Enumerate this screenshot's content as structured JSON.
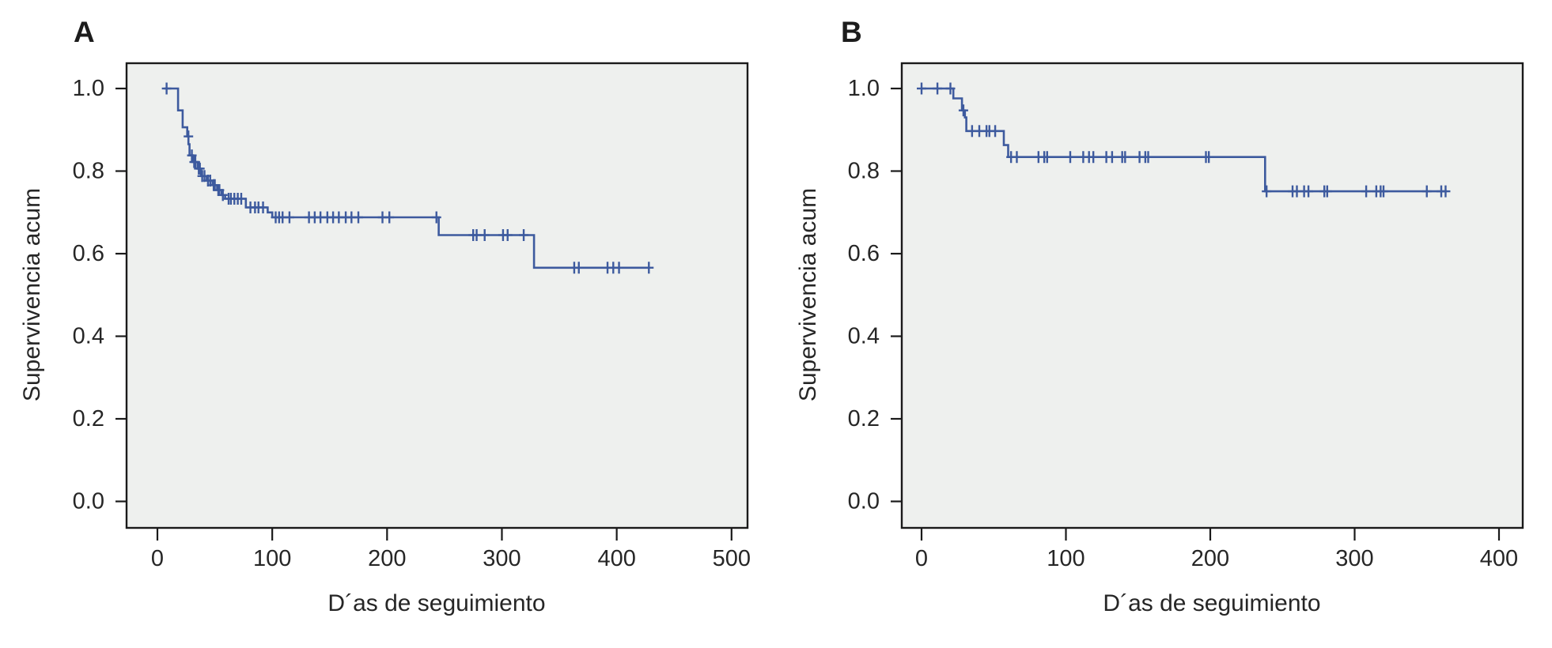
{
  "figure": {
    "background": "#ffffff",
    "plot_background": "#eef0ee",
    "axis_color": "#1a1a1a",
    "text_color": "#262626",
    "curve_color": "#3d5a9e"
  },
  "chart_data": [
    {
      "type": "line",
      "subtype": "kaplan-meier-step",
      "panel_label": "A",
      "title": "",
      "xlabel": "D´as de seguimiento",
      "ylabel": "Supervivencia acum",
      "xlim": [
        0,
        500
      ],
      "ylim": [
        0.0,
        1.0
      ],
      "x_ticks": [
        0,
        100,
        200,
        300,
        400,
        500
      ],
      "y_ticks": [
        0.0,
        0.2,
        0.4,
        0.6,
        0.8,
        1.0
      ],
      "grid": false,
      "legend": "none",
      "series": [
        {
          "name": "Supervivencia acum",
          "color": "#3d5a9e",
          "steps": [
            [
              6,
              1.0
            ],
            [
              18,
              1.0
            ],
            [
              18,
              0.947
            ],
            [
              22,
              0.947
            ],
            [
              22,
              0.906
            ],
            [
              26,
              0.906
            ],
            [
              26,
              0.884
            ],
            [
              27,
              0.884
            ],
            [
              27,
              0.865
            ],
            [
              28,
              0.865
            ],
            [
              28,
              0.838
            ],
            [
              31,
              0.838
            ],
            [
              31,
              0.822
            ],
            [
              35,
              0.822
            ],
            [
              35,
              0.806
            ],
            [
              38,
              0.806
            ],
            [
              38,
              0.788
            ],
            [
              43,
              0.788
            ],
            [
              43,
              0.777
            ],
            [
              48,
              0.777
            ],
            [
              48,
              0.766
            ],
            [
              52,
              0.766
            ],
            [
              52,
              0.754
            ],
            [
              56,
              0.754
            ],
            [
              56,
              0.742
            ],
            [
              59,
              0.742
            ],
            [
              59,
              0.733
            ],
            [
              77,
              0.733
            ],
            [
              77,
              0.712
            ],
            [
              96,
              0.712
            ],
            [
              96,
              0.7
            ],
            [
              100,
              0.7
            ],
            [
              100,
              0.688
            ],
            [
              245,
              0.688
            ],
            [
              245,
              0.645
            ],
            [
              328,
              0.645
            ],
            [
              328,
              0.566
            ],
            [
              428,
              0.566
            ]
          ],
          "censors": [
            [
              8,
              1.0
            ],
            [
              27,
              0.884
            ],
            [
              30,
              0.838
            ],
            [
              32,
              0.822
            ],
            [
              33,
              0.822
            ],
            [
              36,
              0.806
            ],
            [
              37,
              0.806
            ],
            [
              39,
              0.788
            ],
            [
              41,
              0.788
            ],
            [
              44,
              0.777
            ],
            [
              46,
              0.777
            ],
            [
              49,
              0.766
            ],
            [
              50,
              0.766
            ],
            [
              53,
              0.754
            ],
            [
              54,
              0.754
            ],
            [
              57,
              0.742
            ],
            [
              62,
              0.733
            ],
            [
              64,
              0.733
            ],
            [
              67,
              0.733
            ],
            [
              70,
              0.733
            ],
            [
              73,
              0.733
            ],
            [
              81,
              0.712
            ],
            [
              85,
              0.712
            ],
            [
              88,
              0.712
            ],
            [
              92,
              0.712
            ],
            [
              103,
              0.688
            ],
            [
              106,
              0.688
            ],
            [
              109,
              0.688
            ],
            [
              115,
              0.688
            ],
            [
              132,
              0.688
            ],
            [
              137,
              0.688
            ],
            [
              142,
              0.688
            ],
            [
              148,
              0.688
            ],
            [
              153,
              0.688
            ],
            [
              158,
              0.688
            ],
            [
              164,
              0.688
            ],
            [
              169,
              0.688
            ],
            [
              175,
              0.688
            ],
            [
              196,
              0.688
            ],
            [
              202,
              0.688
            ],
            [
              243,
              0.688
            ],
            [
              275,
              0.645
            ],
            [
              278,
              0.645
            ],
            [
              285,
              0.645
            ],
            [
              301,
              0.645
            ],
            [
              305,
              0.645
            ],
            [
              319,
              0.645
            ],
            [
              363,
              0.566
            ],
            [
              367,
              0.566
            ],
            [
              392,
              0.566
            ],
            [
              397,
              0.566
            ],
            [
              402,
              0.566
            ],
            [
              428,
              0.566
            ]
          ]
        }
      ]
    },
    {
      "type": "line",
      "subtype": "kaplan-meier-step",
      "panel_label": "B",
      "title": "",
      "xlabel": "D´as de seguimiento",
      "ylabel": "Supervivencia acum",
      "xlim": [
        0,
        400
      ],
      "ylim": [
        0.0,
        1.0
      ],
      "x_ticks": [
        0,
        100,
        200,
        300,
        400
      ],
      "y_ticks": [
        0.0,
        0.2,
        0.4,
        0.6,
        0.8,
        1.0
      ],
      "grid": false,
      "legend": "none",
      "series": [
        {
          "name": "Supervivencia acum",
          "color": "#3d5a9e",
          "steps": [
            [
              0,
              1.0
            ],
            [
              22,
              1.0
            ],
            [
              22,
              0.976
            ],
            [
              28,
              0.976
            ],
            [
              28,
              0.947
            ],
            [
              30,
              0.947
            ],
            [
              30,
              0.93
            ],
            [
              31,
              0.93
            ],
            [
              31,
              0.897
            ],
            [
              57,
              0.897
            ],
            [
              57,
              0.863
            ],
            [
              60,
              0.863
            ],
            [
              60,
              0.834
            ],
            [
              238,
              0.834
            ],
            [
              238,
              0.751
            ],
            [
              364,
              0.751
            ]
          ],
          "censors": [
            [
              0,
              1.0
            ],
            [
              11,
              1.0
            ],
            [
              20,
              1.0
            ],
            [
              29,
              0.947
            ],
            [
              35,
              0.897
            ],
            [
              40,
              0.897
            ],
            [
              45,
              0.897
            ],
            [
              47,
              0.897
            ],
            [
              51,
              0.897
            ],
            [
              62,
              0.834
            ],
            [
              66,
              0.834
            ],
            [
              81,
              0.834
            ],
            [
              85,
              0.834
            ],
            [
              87,
              0.834
            ],
            [
              103,
              0.834
            ],
            [
              112,
              0.834
            ],
            [
              116,
              0.834
            ],
            [
              119,
              0.834
            ],
            [
              128,
              0.834
            ],
            [
              132,
              0.834
            ],
            [
              139,
              0.834
            ],
            [
              141,
              0.834
            ],
            [
              151,
              0.834
            ],
            [
              155,
              0.834
            ],
            [
              157,
              0.834
            ],
            [
              197,
              0.834
            ],
            [
              199,
              0.834
            ],
            [
              239,
              0.751
            ],
            [
              257,
              0.751
            ],
            [
              260,
              0.751
            ],
            [
              265,
              0.751
            ],
            [
              268,
              0.751
            ],
            [
              279,
              0.751
            ],
            [
              281,
              0.751
            ],
            [
              308,
              0.751
            ],
            [
              315,
              0.751
            ],
            [
              318,
              0.751
            ],
            [
              320,
              0.751
            ],
            [
              350,
              0.751
            ],
            [
              360,
              0.751
            ],
            [
              363,
              0.751
            ]
          ]
        }
      ]
    }
  ]
}
